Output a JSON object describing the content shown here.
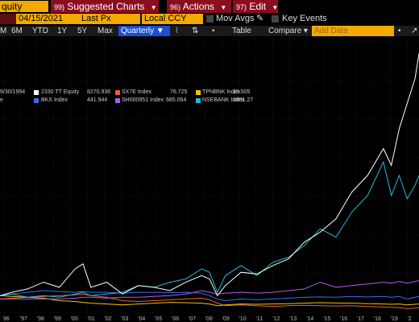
{
  "header": {
    "ticker": "quity",
    "menus": [
      {
        "num": "99)",
        "label": "Suggested Charts"
      },
      {
        "num": "96)",
        "label": "Actions"
      },
      {
        "num": "97)",
        "label": "Edit"
      }
    ]
  },
  "controls": {
    "date": "04/15/2021",
    "field": "Last Px",
    "currency": "Local CCY",
    "mov_avgs": "Mov Avgs",
    "key_events": "Key Events"
  },
  "toolbar": {
    "periods": [
      "M",
      "6M",
      "YTD",
      "1Y",
      "5Y",
      "Max"
    ],
    "frequency": "Quarterly",
    "table": "Table",
    "compare": "Compare",
    "add_data_placeholder": "Add Data"
  },
  "legend": {
    "date": "9/30/1994",
    "partial_label": "e",
    "entries": [
      {
        "name": "2330 TT Equity",
        "value": "8270.936",
        "color": "#ffffff"
      },
      {
        "name": "SX7E Index",
        "value": "76.725",
        "color": "#e8603c"
      },
      {
        "name": "TPNBNK Index",
        "value": "19.505",
        "color": "#f2c200"
      },
      {
        "name": "BKX Index",
        "value": "441.944",
        "color": "#3a6ee8"
      },
      {
        "name": "SH000951 Index",
        "value": "685.064",
        "color": "#b05ce8"
      },
      {
        "name": "NSEBANK Index",
        "value": "2891.27",
        "color": "#22b8d8"
      }
    ]
  },
  "chart_data": {
    "type": "line",
    "x_tick_labels": [
      "96",
      "'97",
      "'98",
      "'99",
      "'00",
      "'01",
      "'02",
      "'03",
      "'04",
      "'05",
      "'06",
      "'07",
      "'08",
      "'09",
      "'10",
      "'11",
      "'12",
      "'13",
      "'14",
      "'15",
      "'16",
      "'17",
      "'18",
      "'19",
      "'2"
    ],
    "x": [
      1994.75,
      1995.5,
      1996.5,
      1997.5,
      1998.5,
      1999.5,
      2000.0,
      2000.5,
      2001.5,
      2002.5,
      2003.5,
      2004.5,
      2005.5,
      2006.5,
      2007.5,
      2008.0,
      2008.5,
      2009.0,
      2010.0,
      2011.0,
      2012.0,
      2013.0,
      2014.0,
      2015.0,
      2016.0,
      2017.0,
      2018.0,
      2019.0,
      2019.5,
      2020.0,
      2020.5,
      2021.0,
      2021.25
    ],
    "series": [
      {
        "name": "2330 TT Equity",
        "color": "#ffffff",
        "values": [
          100,
          120,
          140,
          180,
          150,
          260,
          290,
          150,
          180,
          110,
          160,
          150,
          130,
          180,
          220,
          200,
          100,
          160,
          240,
          230,
          280,
          320,
          420,
          480,
          560,
          720,
          820,
          980,
          880,
          1100,
          1250,
          1400,
          1550
        ]
      },
      {
        "name": "NSEBANK Index",
        "color": "#22b8d8",
        "values": [
          100,
          110,
          90,
          100,
          90,
          110,
          120,
          100,
          110,
          120,
          160,
          150,
          180,
          200,
          260,
          240,
          120,
          220,
          280,
          220,
          300,
          330,
          400,
          500,
          450,
          600,
          700,
          900,
          700,
          820,
          680,
          760,
          820
        ]
      },
      {
        "name": "SH000951 Index",
        "color": "#b05ce8",
        "values": [
          80,
          80,
          80,
          80,
          80,
          85,
          90,
          90,
          85,
          90,
          90,
          95,
          100,
          110,
          130,
          120,
          110,
          115,
          120,
          115,
          120,
          130,
          140,
          180,
          150,
          160,
          170,
          180,
          175,
          185,
          175,
          185,
          190
        ]
      },
      {
        "name": "BKX Index",
        "color": "#3a6ee8",
        "values": [
          100,
          110,
          120,
          130,
          125,
          120,
          125,
          120,
          120,
          115,
          120,
          120,
          118,
          120,
          115,
          100,
          80,
          70,
          80,
          75,
          80,
          85,
          90,
          92,
          90,
          95,
          92,
          95,
          90,
          95,
          80,
          90,
          95
        ]
      },
      {
        "name": "TPNBNK Index",
        "color": "#f2c200",
        "values": [
          100,
          95,
          90,
          85,
          70,
          65,
          60,
          55,
          50,
          45,
          50,
          55,
          60,
          58,
          55,
          50,
          40,
          45,
          50,
          48,
          50,
          52,
          55,
          58,
          56,
          55,
          52,
          50,
          48,
          50,
          45,
          48,
          50
        ]
      },
      {
        "name": "SX7E Index",
        "color": "#e8603c",
        "values": [
          80,
          85,
          90,
          95,
          100,
          105,
          110,
          100,
          90,
          70,
          65,
          70,
          75,
          80,
          85,
          75,
          55,
          40,
          45,
          40,
          35,
          40,
          42,
          40,
          38,
          40,
          35,
          32,
          30,
          28,
          22,
          25,
          28
        ]
      }
    ],
    "ylim": [
      0,
      1600
    ],
    "grid": true
  }
}
